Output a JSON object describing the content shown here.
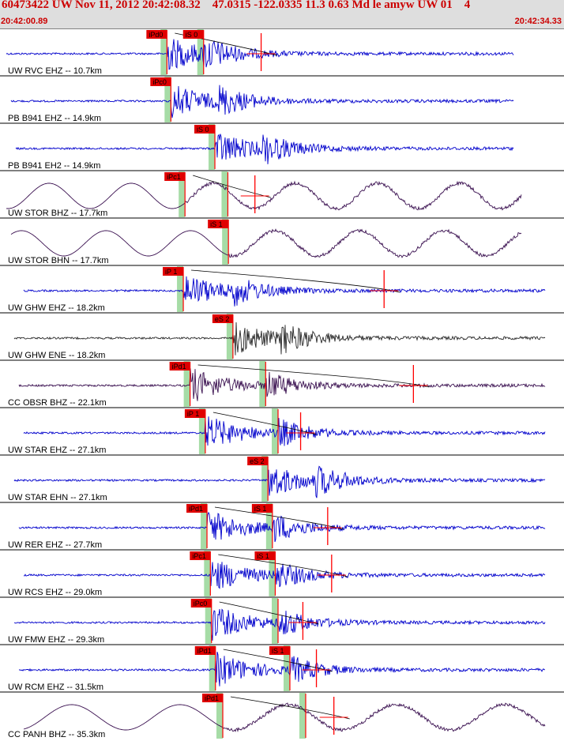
{
  "header": {
    "title": "60473422 UW Nov 11, 2012 20:42:08.32    47.0315 -122.0335 11.3 0.63 Md le amyw UW 01    4",
    "start_time": "20:42:00.89",
    "end_time": "20:42:34.33"
  },
  "colors": {
    "background": "#ffffff",
    "header_bg": "#dedede",
    "header_text": "#cc0000",
    "pick_red": "#ff0000",
    "pick_box": "#e00000",
    "pick_window": "#a6dca6",
    "blue_trace": "#0000cc",
    "purple_trace": "#3a1050",
    "gray_trace": "#2a2a2a"
  },
  "traces": [
    {
      "label": "UW RVC EHZ -- 10.7km",
      "color": "#0000cc",
      "kind": "noise",
      "picks": [
        {
          "label": "iPd0",
          "t": 0.296
        },
        {
          "label": "iS 0",
          "t": 0.361
        }
      ],
      "coda": 0.463
    },
    {
      "label": "PB B941 EHZ -- 14.9km",
      "color": "#0000cc",
      "kind": "noise",
      "picks": [
        {
          "label": "iPc0",
          "t": 0.303
        }
      ],
      "coda": null
    },
    {
      "label": "PB B941 EH2 -- 14.9km",
      "color": "#0000cc",
      "kind": "noise",
      "picks": [
        {
          "label": "iS 0",
          "t": 0.381
        }
      ],
      "coda": null
    },
    {
      "label": "UW STOR BHZ -- 17.7km",
      "color": "#3a1050",
      "kind": "wave",
      "picks": [
        {
          "label": "iPc1",
          "t": 0.328
        },
        {
          "label": "",
          "t": 0.404
        }
      ],
      "coda": 0.452
    },
    {
      "label": "UW STOR BHN -- 17.7km",
      "color": "#3a1050",
      "kind": "wave",
      "picks": [
        {
          "label": "iS 1",
          "t": 0.405
        }
      ],
      "coda": null
    },
    {
      "label": "UW GHW EHZ -- 18.2km",
      "color": "#0000cc",
      "kind": "noise",
      "picks": [
        {
          "label": "iP 1",
          "t": 0.325
        }
      ],
      "coda": 0.681
    },
    {
      "label": "UW GHW ENE -- 18.2km",
      "color": "#2a2a2a",
      "kind": "noise",
      "picks": [
        {
          "label": "eS 2",
          "t": 0.413
        }
      ],
      "coda": null
    },
    {
      "label": "CC OBSR BHZ -- 22.1km",
      "color": "#3a1050",
      "kind": "noise",
      "picks": [
        {
          "label": "iPd1",
          "t": 0.337
        },
        {
          "label": "",
          "t": 0.471
        }
      ],
      "coda": 0.733
    },
    {
      "label": "UW STAR EHZ -- 27.1km",
      "color": "#0000cc",
      "kind": "noise",
      "picks": [
        {
          "label": "iP 1",
          "t": 0.364
        },
        {
          "label": "",
          "t": 0.493
        }
      ],
      "coda": 0.533
    },
    {
      "label": "UW STAR EHN -- 27.1km",
      "color": "#0000cc",
      "kind": "noise",
      "picks": [
        {
          "label": "eS 2",
          "t": 0.475
        }
      ],
      "coda": null
    },
    {
      "label": "UW RER EHZ -- 27.7km",
      "color": "#0000cc",
      "kind": "noise",
      "picks": [
        {
          "label": "iPd1",
          "t": 0.367
        },
        {
          "label": "iS 1",
          "t": 0.483
        }
      ],
      "coda": 0.581
    },
    {
      "label": "UW RCS EHZ -- 29.0km",
      "color": "#0000cc",
      "kind": "noise",
      "picks": [
        {
          "label": "iPc1",
          "t": 0.373
        },
        {
          "label": "iS 1",
          "t": 0.488
        }
      ],
      "coda": 0.588
    },
    {
      "label": "UW FMW EHZ -- 29.3km",
      "color": "#0000cc",
      "kind": "noise",
      "picks": [
        {
          "label": "iPc0",
          "t": 0.375
        },
        {
          "label": "",
          "t": 0.493
        }
      ],
      "coda": 0.537
    },
    {
      "label": "UW RCM EHZ -- 31.5km",
      "color": "#0000cc",
      "kind": "noise",
      "picks": [
        {
          "label": "iPd1",
          "t": 0.382
        },
        {
          "label": "iS 1",
          "t": 0.514
        }
      ],
      "coda": 0.561
    },
    {
      "label": "CC PANH BHZ -- 35.3km",
      "color": "#3a1050",
      "kind": "wave",
      "picks": [
        {
          "label": "iPd1",
          "t": 0.395
        },
        {
          "label": "",
          "t": 0.542
        }
      ],
      "coda": 0.592
    }
  ]
}
